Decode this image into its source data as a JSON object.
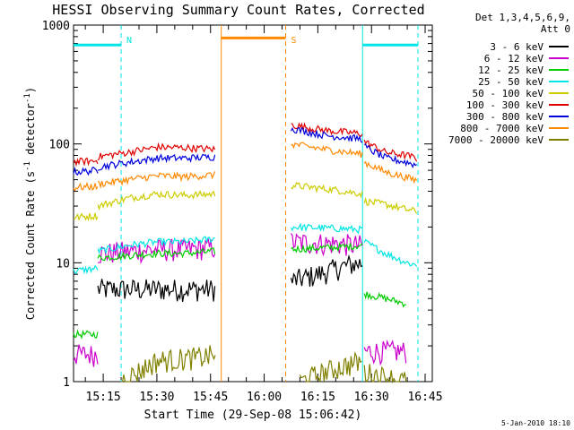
{
  "chart_data": {
    "type": "line",
    "title": "HESSI Observing Summary Count Rates, Corrected",
    "xlabel": "Start Time (29-Sep-08 15:06:42)",
    "ylabel_parts": [
      "Corrected Count Rate (s",
      "-1",
      " detector",
      "-1",
      ")"
    ],
    "yscale": "log",
    "ylim": [
      1,
      1000
    ],
    "xlim": [
      "15:06:42",
      "16:47:00"
    ],
    "x_ticks": [
      "15:15",
      "15:30",
      "15:45",
      "16:00",
      "16:15",
      "16:30",
      "16:45"
    ],
    "y_ticks": [
      "1",
      "10",
      "100",
      "1000"
    ],
    "legend_title": [
      "Det 1,3,4,5,6,9,",
      "Att 0"
    ],
    "legend_position": "top-right",
    "date_stamp": "5-Jan-2010 18:10",
    "gap": [
      "15:48:00",
      "16:06:00"
    ],
    "series": [
      {
        "name": "3 - 6 keV",
        "color": "#000000",
        "segments": [
          [
            [
              "15:06:42",
              null
            ],
            [
              "15:13:30",
              null
            ]
          ],
          [
            [
              "15:13:30",
              6.0
            ],
            [
              "15:46:30",
              6.0
            ]
          ],
          [
            [
              "16:07:30",
              7.0
            ],
            [
              "16:15:00",
              8.0
            ],
            [
              "16:23:00",
              9.5
            ],
            [
              "16:27:30",
              10.0
            ]
          ]
        ]
      },
      {
        "name": "6 - 12 keV",
        "color": "#cc00cc",
        "segments": [
          [
            [
              "15:06:42",
              1.7
            ],
            [
              "15:13:30",
              1.7
            ]
          ],
          [
            [
              "15:13:30",
              12.0
            ],
            [
              "15:22:00",
              12.5
            ],
            [
              "15:30:00",
              13.0
            ],
            [
              "15:38:00",
              13.0
            ],
            [
              "15:46:30",
              13.5
            ]
          ],
          [
            [
              "16:07:30",
              15.0
            ],
            [
              "16:20:00",
              14.5
            ],
            [
              "16:27:30",
              14.0
            ]
          ],
          [
            [
              "16:28:00",
              1.8
            ],
            [
              "16:40:00",
              1.8
            ]
          ]
        ]
      },
      {
        "name": "12 - 25 keV",
        "color": "#00cc00",
        "segments": [
          [
            [
              "15:06:42",
              2.5
            ],
            [
              "15:13:30",
              2.5
            ]
          ],
          [
            [
              "15:13:30",
              11.0
            ],
            [
              "15:22:00",
              11.5
            ],
            [
              "15:30:00",
              12.0
            ],
            [
              "15:38:00",
              12.0
            ],
            [
              "15:46:30",
              12.5
            ]
          ],
          [
            [
              "16:07:30",
              13.0
            ],
            [
              "16:20:00",
              13.5
            ],
            [
              "16:27:30",
              14.0
            ]
          ],
          [
            [
              "16:28:00",
              5.5
            ],
            [
              "16:34:00",
              5.0
            ],
            [
              "16:40:00",
              4.5
            ]
          ]
        ]
      },
      {
        "name": "25 - 50 keV",
        "color": "#00e5e5",
        "segments": [
          [
            [
              "15:06:42",
              8.5
            ],
            [
              "15:13:30",
              9.0
            ]
          ],
          [
            [
              "15:13:30",
              12.5
            ],
            [
              "15:22:00",
              14.0
            ],
            [
              "15:30:00",
              15.0
            ],
            [
              "15:38:00",
              15.0
            ],
            [
              "15:46:30",
              16.0
            ]
          ],
          [
            [
              "16:07:30",
              20.0
            ],
            [
              "16:20:00",
              19.5
            ],
            [
              "16:27:30",
              19.0
            ]
          ],
          [
            [
              "16:28:00",
              15.0
            ],
            [
              "16:34:00",
              12.0
            ],
            [
              "16:40:00",
              10.0
            ],
            [
              "16:43:00",
              9.5
            ]
          ]
        ]
      },
      {
        "name": "50 - 100 keV",
        "color": "#cccc00",
        "segments": [
          [
            [
              "15:06:42",
              24.0
            ],
            [
              "15:13:30",
              25.0
            ]
          ],
          [
            [
              "15:13:30",
              30.0
            ],
            [
              "15:22:00",
              35.0
            ],
            [
              "15:30:00",
              38.0
            ],
            [
              "15:38:00",
              37.0
            ],
            [
              "15:46:30",
              38.0
            ]
          ],
          [
            [
              "16:07:30",
              45.0
            ],
            [
              "16:20:00",
              41.0
            ],
            [
              "16:27:30",
              38.0
            ]
          ],
          [
            [
              "16:28:00",
              33.0
            ],
            [
              "16:34:00",
              31.0
            ],
            [
              "16:40:00",
              28.0
            ],
            [
              "16:43:00",
              27.0
            ]
          ]
        ]
      },
      {
        "name": "100 - 300 keV",
        "color": "#e00000",
        "segments": [
          [
            [
              "15:06:42",
              71.0
            ],
            [
              "15:13:30",
              72.0
            ]
          ],
          [
            [
              "15:13:30",
              78.0
            ],
            [
              "15:22:00",
              85.0
            ],
            [
              "15:30:00",
              94.0
            ],
            [
              "15:38:00",
              93.0
            ],
            [
              "15:46:30",
              90.0
            ]
          ],
          [
            [
              "16:07:30",
              145.0
            ],
            [
              "16:17:00",
              130.0
            ],
            [
              "16:27:30",
              122.0
            ]
          ],
          [
            [
              "16:28:00",
              105.0
            ],
            [
              "16:34:00",
              85.0
            ],
            [
              "16:40:00",
              80.0
            ],
            [
              "16:43:00",
              75.0
            ]
          ]
        ]
      },
      {
        "name": "300 - 800 keV",
        "color": "#0000dd",
        "segments": [
          [
            [
              "15:06:42",
              58.0
            ],
            [
              "15:13:30",
              60.0
            ]
          ],
          [
            [
              "15:13:30",
              64.0
            ],
            [
              "15:22:00",
              70.0
            ],
            [
              "15:30:00",
              76.0
            ],
            [
              "15:38:00",
              76.0
            ],
            [
              "15:46:30",
              78.0
            ]
          ],
          [
            [
              "16:07:30",
              135.0
            ],
            [
              "16:17:00",
              118.0
            ],
            [
              "16:27:30",
              110.0
            ]
          ],
          [
            [
              "16:28:00",
              95.0
            ],
            [
              "16:34:00",
              76.0
            ],
            [
              "16:40:00",
              70.0
            ],
            [
              "16:43:00",
              66.0
            ]
          ]
        ]
      },
      {
        "name": "800 - 7000 keV",
        "color": "#ff8800",
        "segments": [
          [
            [
              "15:06:42",
              43.0
            ],
            [
              "15:13:30",
              44.0
            ]
          ],
          [
            [
              "15:13:30",
              46.0
            ],
            [
              "15:22:00",
              50.0
            ],
            [
              "15:30:00",
              54.0
            ],
            [
              "15:38:00",
              53.0
            ],
            [
              "15:46:30",
              55.0
            ]
          ],
          [
            [
              "16:07:30",
              100.0
            ],
            [
              "16:17:00",
              90.0
            ],
            [
              "16:27:30",
              82.0
            ]
          ],
          [
            [
              "16:28:00",
              70.0
            ],
            [
              "16:34:00",
              58.0
            ],
            [
              "16:40:00",
              52.0
            ],
            [
              "16:43:00",
              49.0
            ]
          ]
        ]
      },
      {
        "name": "7000 - 20000 keV",
        "color": "#808000",
        "segments": [
          [
            [
              "15:20:00",
              1.0
            ],
            [
              "15:30:00",
              1.5
            ],
            [
              "15:42:00",
              1.6
            ],
            [
              "15:46:30",
              1.7
            ]
          ],
          [
            [
              "16:10:00",
              1.0
            ],
            [
              "16:20:00",
              1.3
            ],
            [
              "16:27:30",
              1.5
            ]
          ],
          [
            [
              "16:28:00",
              1.2
            ],
            [
              "16:40:00",
              1.0
            ]
          ]
        ]
      }
    ],
    "annotations": [
      {
        "label": "N",
        "color": "#00e5e5",
        "from": "15:06:42",
        "to": "15:20:00",
        "level": 680.0,
        "dashed_line": "15:20:00"
      },
      {
        "label": "",
        "color": "#00e5e5",
        "from": "16:27:30",
        "to": "16:43:00",
        "level": 680.0,
        "solid_line": "16:27:30",
        "dashed_line": "16:43:00"
      },
      {
        "label": "S",
        "color": "#ff8800",
        "from": "15:48:00",
        "to": "16:06:00",
        "level": 780.0,
        "solid_line": "15:48:00",
        "dashed_line": "16:06:00"
      }
    ]
  }
}
